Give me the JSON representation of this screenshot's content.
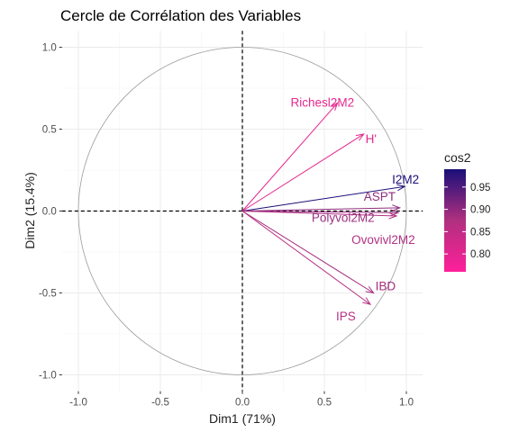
{
  "chart_data": {
    "type": "scatter",
    "title": "Cercle de Corrélation des Variables",
    "xlabel": "Dim1 (71%)",
    "ylabel": "Dim2 (15.4%)",
    "xlim": [
      -1.1,
      1.1
    ],
    "ylim": [
      -1.1,
      1.1
    ],
    "x_ticks": [
      "-1.0",
      "-0.5",
      "0.0",
      "0.5",
      "1.0"
    ],
    "y_ticks": [
      "-1.0",
      "-0.5",
      "0.0",
      "0.5",
      "1.0"
    ],
    "x_tick_values": [
      -1.0,
      -0.5,
      0.0,
      0.5,
      1.0
    ],
    "y_tick_values": [
      -1.0,
      -0.5,
      0.0,
      0.5,
      1.0
    ],
    "grid": true,
    "unit_circle": true,
    "variables": [
      {
        "name": "Richesl2M2",
        "x": 0.58,
        "y": 0.66,
        "cos2": 0.77,
        "color": "#e6288e"
      },
      {
        "name": "H'",
        "x": 0.74,
        "y": 0.47,
        "cos2": 0.78,
        "color": "#e32a8d"
      },
      {
        "name": "I2M2",
        "x": 0.99,
        "y": 0.15,
        "cos2": 0.98,
        "color": "#1c1079"
      },
      {
        "name": "ASPT",
        "x": 0.96,
        "y": 0.02,
        "cos2": 0.9,
        "color": "#8f2e7e"
      },
      {
        "name": "Polyvol2M2",
        "x": 0.95,
        "y": -0.01,
        "cos2": 0.89,
        "color": "#9c2f82"
      },
      {
        "name": "Ovovivl2M2",
        "x": 0.94,
        "y": -0.03,
        "cos2": 0.86,
        "color": "#b23182"
      },
      {
        "name": "IBD",
        "x": 0.8,
        "y": -0.5,
        "cos2": 0.88,
        "color": "#a52f7f"
      },
      {
        "name": "IPS",
        "x": 0.78,
        "y": -0.57,
        "cos2": 0.86,
        "color": "#b73083"
      }
    ],
    "legend": {
      "title": "cos2",
      "position": "right",
      "ticks": [
        "0.95",
        "0.90",
        "0.85",
        "0.80"
      ],
      "tick_values": [
        0.95,
        0.9,
        0.85,
        0.8
      ],
      "range": [
        0.76,
        0.99
      ],
      "color_low": "#ff1f9a",
      "color_high": "#1a0f7a"
    }
  }
}
